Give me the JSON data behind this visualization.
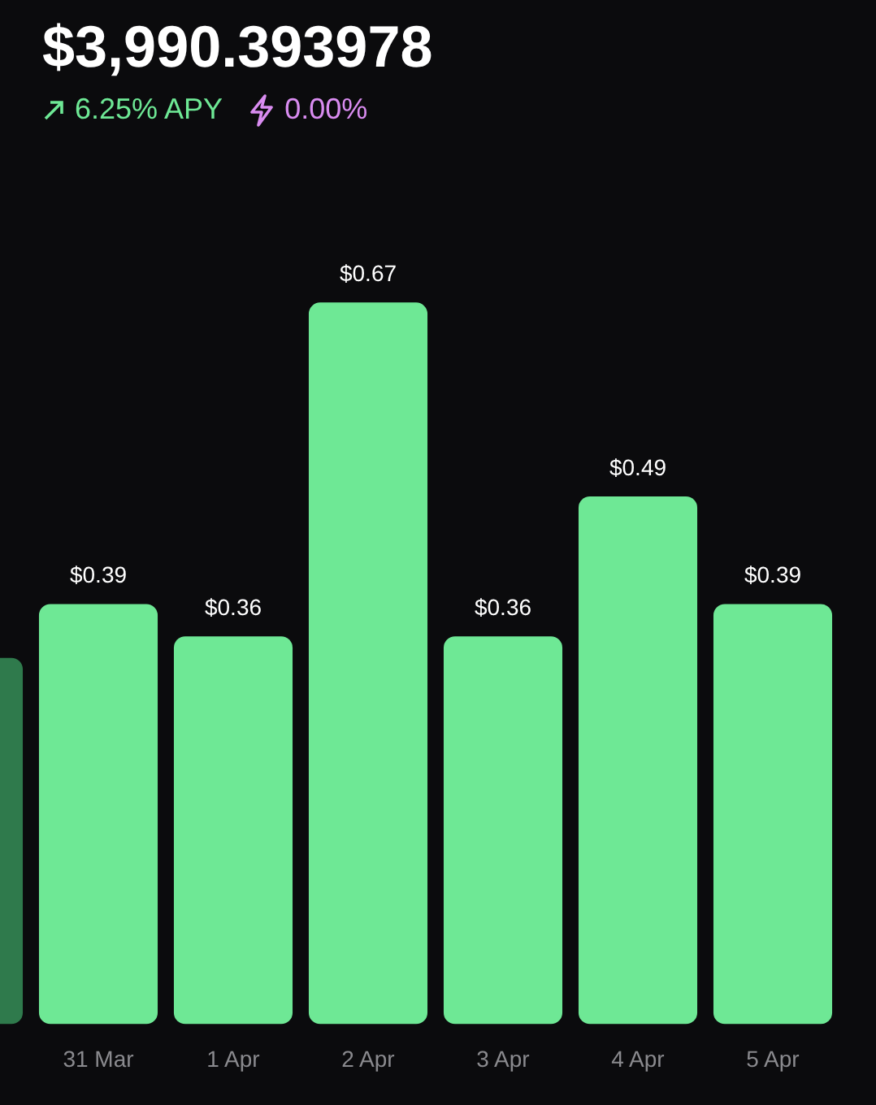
{
  "chart_data": {
    "type": "bar",
    "title": "$3,990.393978",
    "subtitle": "6.25% APY",
    "annotations": [
      "0.00%"
    ],
    "categories": [
      null,
      "31 Mar",
      "1 Apr",
      "2 Apr",
      "3 Apr",
      "4 Apr",
      "5 Apr"
    ],
    "values": [
      0.34,
      0.39,
      0.36,
      0.67,
      0.36,
      0.49,
      0.39
    ],
    "value_labels": [
      null,
      "$0.39",
      "$0.36",
      "$0.67",
      "$0.36",
      "$0.49",
      "$0.39"
    ],
    "colors": [
      "#2f7a4c",
      "#6ee895",
      "#6ee895",
      "#6ee895",
      "#6ee895",
      "#6ee895",
      "#6ee895"
    ],
    "tick_labels": "x",
    "grid": false,
    "legend": false
  }
}
